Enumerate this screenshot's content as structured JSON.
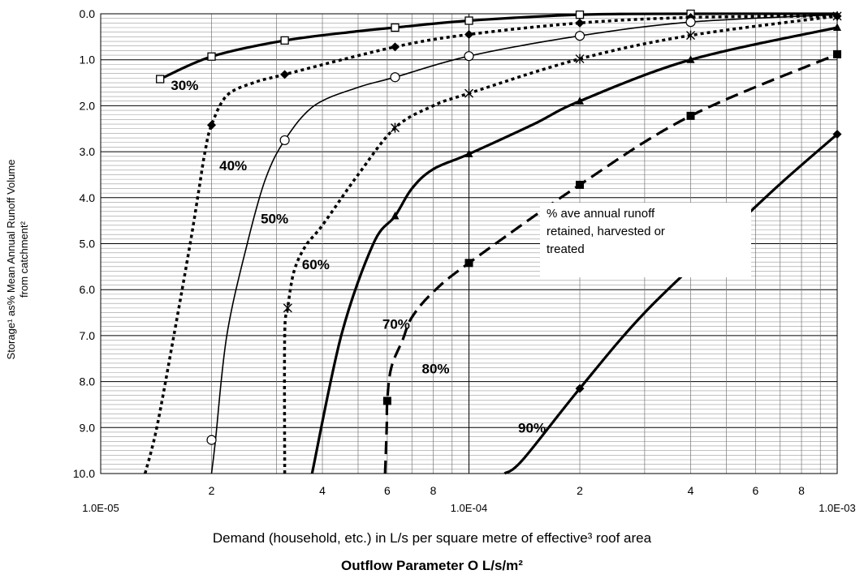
{
  "chart_data": {
    "type": "line",
    "x_scale": "log",
    "y_inverted": true,
    "xlim": [
      1e-05,
      0.001
    ],
    "ylim": [
      0,
      10
    ],
    "grid": true,
    "xlabel": "Demand (household, etc.) in L/s per square metre of effective³ roof area",
    "subtitle": "Outflow Parameter O L/s/m²",
    "ylabel": "Storage¹ as% Mean Annual Runoff Volume\nfrom  catchment²",
    "annotation": "% ave annual runoff\nretained, harvested or\ntreated",
    "y_ticks": [
      "0.0",
      "1.0",
      "2.0",
      "3.0",
      "4.0",
      "5.0",
      "6.0",
      "7.0",
      "8.0",
      "9.0",
      "10.0"
    ],
    "x_major_ticks": [
      {
        "value": 1e-05,
        "label": "1.0E-05"
      },
      {
        "value": 0.0001,
        "label": "1.0E-04"
      },
      {
        "value": 0.001,
        "label": "1.0E-03"
      }
    ],
    "x_minor_labels": [
      {
        "value": 2e-05,
        "label": "2"
      },
      {
        "value": 4e-05,
        "label": "4"
      },
      {
        "value": 6e-05,
        "label": "6"
      },
      {
        "value": 8e-05,
        "label": "8"
      },
      {
        "value": 0.0002,
        "label": "2"
      },
      {
        "value": 0.0004,
        "label": "4"
      },
      {
        "value": 0.0006,
        "label": "6"
      },
      {
        "value": 0.0008,
        "label": "8"
      }
    ],
    "series": [
      {
        "name": "30%",
        "style": "solid-thick",
        "marker": "square-open",
        "x": [
          1.45e-05,
          2e-05,
          3.16e-05,
          5e-05,
          6.3e-05,
          0.0001,
          0.0002,
          0.0004,
          0.001
        ],
        "y": [
          1.42,
          0.93,
          0.58,
          0.38,
          0.3,
          0.15,
          0.02,
          0.0,
          0.0
        ],
        "marks": [
          [
            1.45e-05,
            1.42
          ],
          [
            2e-05,
            0.93
          ],
          [
            3.16e-05,
            0.58
          ],
          [
            6.3e-05,
            0.3
          ],
          [
            0.0001,
            0.15
          ],
          [
            0.0002,
            0.02
          ],
          [
            0.0004,
            0.0
          ]
        ]
      },
      {
        "name": "40%",
        "style": "dotted",
        "marker": "diamond-filled",
        "x": [
          1.32e-05,
          1.42e-05,
          1.58e-05,
          1.75e-05,
          1.85e-05,
          1.92e-05,
          2e-05,
          2.2e-05,
          2.6e-05,
          3.16e-05,
          6.3e-05,
          0.0001,
          0.0002,
          0.0004,
          0.001
        ],
        "y": [
          10.0,
          9.0,
          7.0,
          5.0,
          3.8,
          3.0,
          2.42,
          1.78,
          1.5,
          1.32,
          0.72,
          0.45,
          0.2,
          0.08,
          0.05
        ],
        "marks": [
          [
            2e-05,
            2.42
          ],
          [
            3.16e-05,
            1.32
          ],
          [
            6.3e-05,
            0.72
          ],
          [
            0.0001,
            0.45
          ],
          [
            0.0002,
            0.2
          ],
          [
            0.0004,
            0.08
          ],
          [
            0.001,
            0.05
          ]
        ]
      },
      {
        "name": "50%",
        "style": "solid-thin",
        "marker": "circle-open",
        "x": [
          2e-05,
          2.05e-05,
          2.2e-05,
          2.5e-05,
          2.8e-05,
          3.16e-05,
          3.8e-05,
          5e-05,
          6.3e-05,
          0.0001,
          0.0002,
          0.0004,
          0.001
        ],
        "y": [
          10.0,
          9.27,
          7.0,
          5.0,
          3.6,
          2.75,
          2.0,
          1.6,
          1.38,
          0.92,
          0.48,
          0.18,
          0.02
        ],
        "marks": [
          [
            2e-05,
            9.27
          ],
          [
            3.16e-05,
            2.75
          ],
          [
            6.3e-05,
            1.38
          ],
          [
            0.0001,
            0.92
          ],
          [
            0.0002,
            0.48
          ],
          [
            0.0004,
            0.18
          ]
        ]
      },
      {
        "name": "60%",
        "style": "dotted",
        "marker": "star",
        "x": [
          3.16e-05,
          3.16e-05,
          3.22e-05,
          3.35e-05,
          3.6e-05,
          4e-05,
          5e-05,
          6.3e-05,
          8e-05,
          0.0001,
          0.0002,
          0.0004,
          0.001
        ],
        "y": [
          10.0,
          7.0,
          6.4,
          5.6,
          5.05,
          4.6,
          3.5,
          2.48,
          2.0,
          1.73,
          0.98,
          0.47,
          0.05
        ],
        "marks": [
          [
            3.22e-05,
            6.4
          ],
          [
            6.3e-05,
            2.48
          ],
          [
            0.0001,
            1.73
          ],
          [
            0.0002,
            0.98
          ],
          [
            0.0004,
            0.47
          ],
          [
            0.001,
            0.05
          ]
        ]
      },
      {
        "name": "70%",
        "style": "solid-thick",
        "marker": "triangle-filled",
        "x": [
          3.75e-05,
          4.5e-05,
          5.5e-05,
          6.3e-05,
          7e-05,
          8e-05,
          0.0001,
          0.00015,
          0.0002,
          0.0004,
          0.001
        ],
        "y": [
          10.0,
          7.0,
          5.0,
          4.4,
          3.8,
          3.38,
          3.05,
          2.4,
          1.9,
          1.0,
          0.3
        ],
        "marks": [
          [
            6.3e-05,
            4.4
          ],
          [
            0.0001,
            3.05
          ],
          [
            0.0002,
            1.9
          ],
          [
            0.0004,
            1.0
          ],
          [
            0.001,
            0.3
          ]
        ]
      },
      {
        "name": "80%",
        "style": "dashed",
        "marker": "square-filled",
        "x": [
          5.92e-05,
          5.98e-05,
          6e-05,
          6.15e-05,
          6.6e-05,
          7e-05,
          8e-05,
          0.0001,
          0.0002,
          0.0004,
          0.001
        ],
        "y": [
          10.0,
          9.0,
          8.42,
          7.7,
          7.1,
          6.6,
          6.05,
          5.42,
          3.72,
          2.22,
          0.88
        ],
        "marks": [
          [
            6e-05,
            8.42
          ],
          [
            0.0001,
            5.42
          ],
          [
            0.0002,
            3.72
          ],
          [
            0.0004,
            2.22
          ],
          [
            0.001,
            0.88
          ]
        ]
      },
      {
        "name": "90%",
        "style": "solid-thick",
        "marker": "diamond-filled",
        "x": [
          0.000125,
          0.00014,
          0.0002,
          0.0003,
          0.0005,
          0.0007,
          0.001
        ],
        "y": [
          10.0,
          9.7,
          8.15,
          6.5,
          4.8,
          3.7,
          2.62
        ],
        "marks": [
          [
            0.0002,
            8.15
          ],
          [
            0.001,
            2.62
          ]
        ]
      }
    ],
    "series_label_anchors": [
      {
        "name": "30%",
        "x": 1.55e-05,
        "y": 1.55
      },
      {
        "name": "40%",
        "x": 2.1e-05,
        "y": 3.3
      },
      {
        "name": "50%",
        "x": 2.72e-05,
        "y": 4.45
      },
      {
        "name": "60%",
        "x": 3.52e-05,
        "y": 5.45
      },
      {
        "name": "70%",
        "x": 5.82e-05,
        "y": 6.75
      },
      {
        "name": "80%",
        "x": 7.45e-05,
        "y": 7.72
      },
      {
        "name": "90%",
        "x": 0.000136,
        "y": 9.0
      }
    ]
  }
}
